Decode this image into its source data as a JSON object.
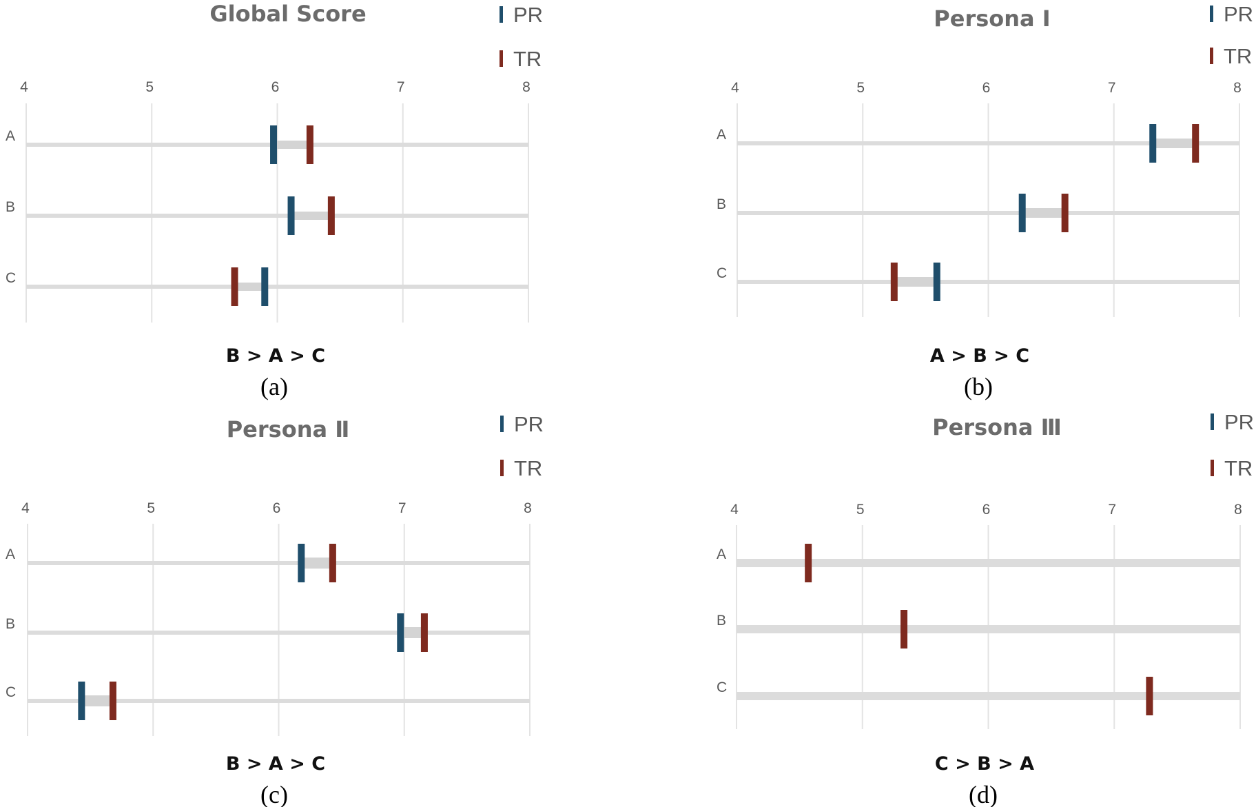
{
  "colors": {
    "PR": "#1f4e6b",
    "TR": "#7e2a1f",
    "track": "#dcdcdc",
    "gap": "#d4d4d4",
    "grid": "#e3e3e3"
  },
  "legend": {
    "PR": "PR",
    "TR": "TR"
  },
  "chart_data": [
    {
      "type": "dumbbell",
      "title": "Global Score",
      "xlim": [
        4,
        8
      ],
      "xticks": [
        "4",
        "5",
        "6",
        "7",
        "8"
      ],
      "categories": [
        "A",
        "B",
        "C"
      ],
      "series": [
        {
          "name": "PR",
          "values": [
            5.97,
            6.11,
            5.9
          ]
        },
        {
          "name": "TR",
          "values": [
            6.26,
            6.43,
            5.66
          ]
        }
      ],
      "ranking": "B > A > C",
      "caption": "(a)"
    },
    {
      "type": "dumbbell",
      "title": "Persona  Ⅰ",
      "xlim": [
        4,
        8
      ],
      "xticks": [
        "4",
        "5",
        "6",
        "7",
        "8"
      ],
      "categories": [
        "A",
        "B",
        "C"
      ],
      "series": [
        {
          "name": "PR",
          "values": [
            7.31,
            6.27,
            5.59
          ]
        },
        {
          "name": "TR",
          "values": [
            7.65,
            6.61,
            5.25
          ]
        }
      ],
      "ranking": "A > B > C",
      "caption": "(b)"
    },
    {
      "type": "dumbbell",
      "title": "Persona Ⅱ",
      "xlim": [
        4,
        8
      ],
      "xticks": [
        "4",
        "5",
        "6",
        "7",
        "8"
      ],
      "categories": [
        "A",
        "B",
        "C"
      ],
      "series": [
        {
          "name": "PR",
          "values": [
            6.18,
            6.97,
            4.43
          ]
        },
        {
          "name": "TR",
          "values": [
            6.43,
            7.16,
            4.68
          ]
        }
      ],
      "ranking": "B > A > C",
      "caption": "(c)"
    },
    {
      "type": "dumbbell",
      "title": "Persona Ⅲ",
      "xlim": [
        4,
        8
      ],
      "xticks": [
        "4",
        "5",
        "6",
        "7",
        "8"
      ],
      "categories": [
        "A",
        "B",
        "C"
      ],
      "series": [
        {
          "name": "PR",
          "values": [
            null,
            null,
            null
          ]
        },
        {
          "name": "TR",
          "values": [
            4.57,
            5.33,
            7.28
          ]
        }
      ],
      "ranking": "C > B > A",
      "caption": "(d)"
    }
  ]
}
